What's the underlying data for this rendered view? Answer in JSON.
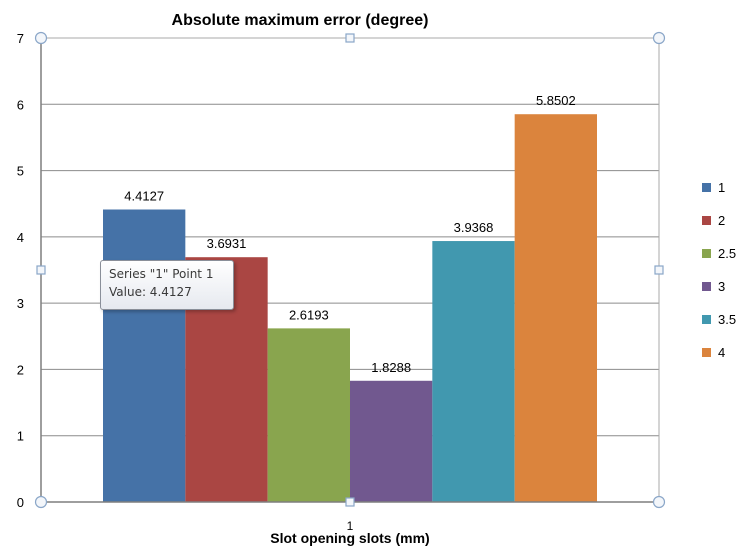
{
  "chart_data": {
    "type": "bar",
    "title": "Absolute maximum error (degree)",
    "xlabel": "Slot opening slots (mm)",
    "ylabel": "",
    "categories": [
      "1"
    ],
    "ylim": [
      0,
      7
    ],
    "yticks": [
      "0",
      "1",
      "2",
      "3",
      "4",
      "5",
      "6",
      "7"
    ],
    "grid": true,
    "legend_position": "right",
    "series": [
      {
        "name": "1",
        "values": [
          4.4127
        ],
        "label": "4.4127",
        "color": "#4572a7"
      },
      {
        "name": "2",
        "values": [
          3.6931
        ],
        "label": "3.6931",
        "color": "#aa4643"
      },
      {
        "name": "2.5",
        "values": [
          2.6193
        ],
        "label": "2.6193",
        "color": "#89a54e"
      },
      {
        "name": "3",
        "values": [
          1.8288
        ],
        "label": "1.8288",
        "color": "#71588f"
      },
      {
        "name": "3.5",
        "values": [
          3.9368
        ],
        "label": "3.9368",
        "color": "#4198af"
      },
      {
        "name": "4",
        "values": [
          5.8502
        ],
        "label": "5.8502",
        "color": "#db843d"
      }
    ]
  },
  "tooltip": {
    "line1": "Series \"1\" Point 1",
    "line2": "Value: 4.4127"
  }
}
